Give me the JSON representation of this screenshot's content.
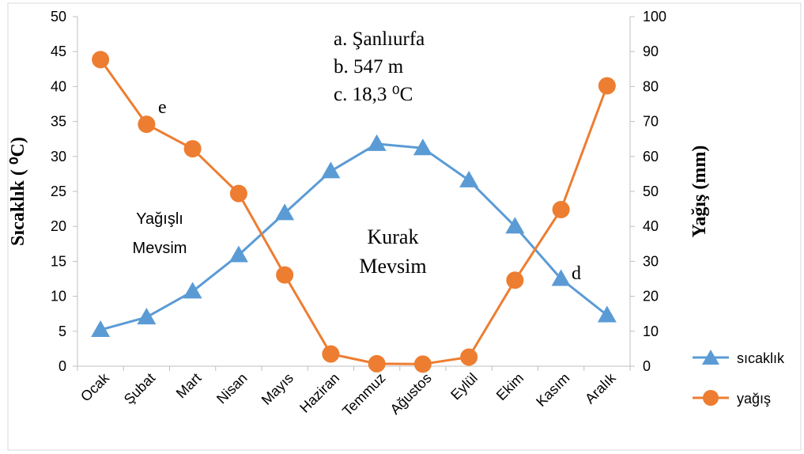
{
  "chart_data": {
    "type": "line",
    "categories": [
      "Ocak",
      "Şubat",
      "Mart",
      "Nisan",
      "Mayıs",
      "Haziran",
      "Temmuz",
      "Ağustos",
      "Eylül",
      "Ekim",
      "Kasım",
      "Aralık"
    ],
    "series": [
      {
        "name": "sıcaklık",
        "axis": "left",
        "color": "#5B9BD5",
        "marker": "triangle",
        "values": [
          5.2,
          7.0,
          10.7,
          15.9,
          21.9,
          27.9,
          31.8,
          31.2,
          26.6,
          20.0,
          12.5,
          7.3
        ]
      },
      {
        "name": "yağış",
        "axis": "right",
        "color": "#ED7D31",
        "marker": "circle",
        "values": [
          87.7,
          69.2,
          62.2,
          49.4,
          26.1,
          3.5,
          0.7,
          0.6,
          2.6,
          24.6,
          44.8,
          80.2
        ]
      }
    ],
    "ylabel": "Sıcaklık ( ⁰C)",
    "y2label": "Yağış (mm)",
    "ylim": [
      0,
      50
    ],
    "y2lim": [
      0,
      100
    ],
    "yticks": [
      0,
      5,
      10,
      15,
      20,
      25,
      30,
      35,
      40,
      45,
      50
    ],
    "y2ticks": [
      0,
      10,
      20,
      30,
      40,
      50,
      60,
      70,
      80,
      90,
      100
    ],
    "legend_position": "right",
    "grid": false,
    "info_lines": [
      "a. Şanlıurfa",
      "b. 547 m",
      "c. 18,3 ⁰C"
    ],
    "annotations": {
      "e": "e",
      "d": "d",
      "wet_season": [
        "Yağışlı",
        "Mevsim"
      ],
      "dry_season": [
        "Kurak",
        "Mevsim"
      ]
    }
  }
}
